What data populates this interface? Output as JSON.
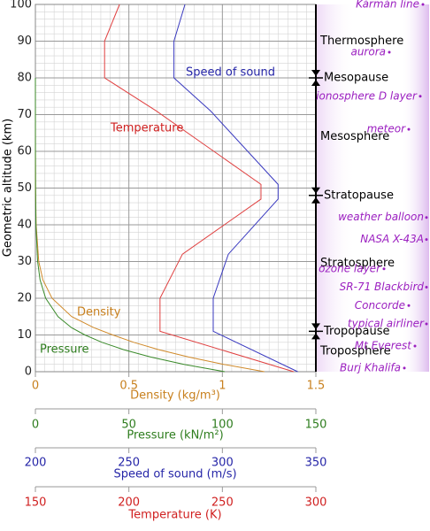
{
  "chart_data": {
    "type": "line",
    "y_label": "Geometric altitude (km)",
    "ylim": [
      0,
      100
    ],
    "yticks": [
      0,
      10,
      20,
      30,
      40,
      50,
      60,
      70,
      80,
      90,
      100
    ],
    "grid": true,
    "axes": [
      {
        "label": "Density (kg/m³)",
        "color": "#c8801e",
        "xlim": [
          0,
          1.5
        ],
        "xticks": [
          0,
          0.5,
          1,
          1.5
        ],
        "series": {
          "name": "Density",
          "color": "#d08a2a",
          "values": [
            1.225,
            1.007,
            0.819,
            0.66,
            0.526,
            0.414,
            0.312,
            0.194,
            0.089,
            0.04,
            0.018,
            0.004,
            0.001,
            0.0003,
            0.0001,
            2e-05
          ],
          "altitude": [
            0,
            2,
            4,
            6,
            8,
            10,
            12,
            15,
            20,
            25,
            30,
            40,
            50,
            60,
            70,
            80
          ]
        }
      },
      {
        "label": "Pressure (kN/m²)",
        "color": "#2e7d1e",
        "xlim": [
          0,
          150
        ],
        "xticks": [
          0,
          50,
          100,
          150
        ],
        "series": {
          "name": "Pressure",
          "color": "#3a8a2a",
          "values": [
            101.3,
            79.5,
            61.6,
            47.2,
            35.6,
            26.5,
            19.3,
            12.1,
            5.5,
            2.5,
            1.2,
            0.29,
            0.08,
            0.02,
            0.005,
            0.001
          ],
          "altitude": [
            0,
            2,
            4,
            6,
            8,
            10,
            12,
            15,
            20,
            25,
            30,
            40,
            50,
            60,
            70,
            80
          ]
        }
      },
      {
        "label": "Speed of sound (m/s)",
        "color": "#2626a8",
        "xlim": [
          200,
          350
        ],
        "xticks": [
          200,
          250,
          300,
          350
        ],
        "series": {
          "name": "Speed of sound",
          "color": "#3a3ac0",
          "values": [
            340.3,
            295.1,
            295.1,
            303.2,
            329.8,
            329.8,
            293.7,
            274.1,
            274.1,
            280.0
          ],
          "altitude": [
            0,
            11,
            20,
            32,
            47,
            51,
            71,
            80,
            90,
            100
          ]
        }
      },
      {
        "label": "Temperature (K)",
        "color": "#d02020",
        "xlim": [
          150,
          300
        ],
        "xticks": [
          150,
          200,
          250,
          300
        ],
        "series": {
          "name": "Temperature",
          "color": "#e04040",
          "values": [
            288.15,
            216.65,
            216.65,
            228.65,
            270.65,
            270.65,
            214.65,
            187,
            187,
            195
          ],
          "altitude": [
            0,
            11,
            20,
            32,
            47,
            51,
            71,
            80,
            90,
            100
          ]
        }
      }
    ],
    "layers": [
      {
        "name": "Troposphere",
        "range": [
          0,
          11
        ]
      },
      {
        "name": "Stratosphere",
        "range": [
          11,
          48
        ]
      },
      {
        "name": "Mesosphere",
        "range": [
          48,
          80
        ]
      },
      {
        "name": "Thermosphere",
        "range": [
          80,
          100
        ]
      }
    ],
    "boundaries": [
      {
        "name": "Tropopause",
        "altitude": 11
      },
      {
        "name": "Stratopause",
        "altitude": 48
      },
      {
        "name": "Mesopause",
        "altitude": 80
      }
    ],
    "objects": [
      {
        "label": "Kármán line",
        "altitude": 100
      },
      {
        "label": "aurora",
        "altitude": 87
      },
      {
        "label": "ionosphere D layer",
        "altitude": 75
      },
      {
        "label": "meteor",
        "altitude": 66
      },
      {
        "label": "weather balloon",
        "altitude": 42
      },
      {
        "label": "NASA X-43A",
        "altitude": 36
      },
      {
        "label": "ozone layer",
        "altitude": 28
      },
      {
        "label": "SR-71 Blackbird",
        "altitude": 23
      },
      {
        "label": "Concorde",
        "altitude": 18
      },
      {
        "label": "typical airliner",
        "altitude": 13
      },
      {
        "label": "Mt Everest",
        "altitude": 7
      },
      {
        "label": "Burj Khalifa",
        "altitude": 1
      }
    ]
  }
}
